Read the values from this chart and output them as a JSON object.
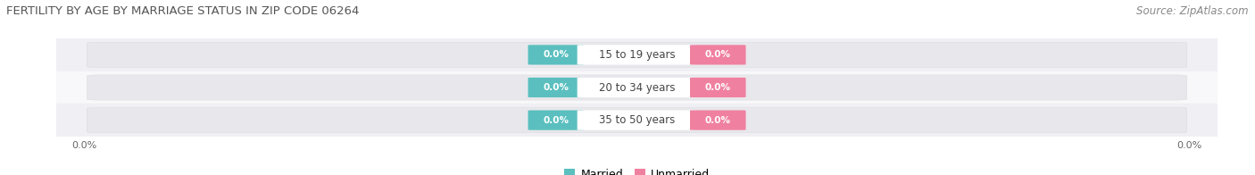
{
  "title": "FERTILITY BY AGE BY MARRIAGE STATUS IN ZIP CODE 06264",
  "source": "Source: ZipAtlas.com",
  "categories": [
    "15 to 19 years",
    "20 to 34 years",
    "35 to 50 years"
  ],
  "married_color": "#5bbfbf",
  "unmarried_color": "#f080a0",
  "bar_bg_color": "#e8e8ec",
  "bar_bg_edge_color": "#d8d8dd",
  "bg_color": "#ffffff",
  "row_colors": [
    "#f0f0f4",
    "#f8f8fa",
    "#f0f0f4"
  ],
  "legend_married": "Married",
  "legend_unmarried": "Unmarried",
  "title_fontsize": 9.5,
  "source_fontsize": 8.5,
  "tick_fontsize": 8,
  "label_fontsize": 7.5,
  "category_fontsize": 8.5,
  "left_tick": "0.0%",
  "right_tick": "0.0%"
}
